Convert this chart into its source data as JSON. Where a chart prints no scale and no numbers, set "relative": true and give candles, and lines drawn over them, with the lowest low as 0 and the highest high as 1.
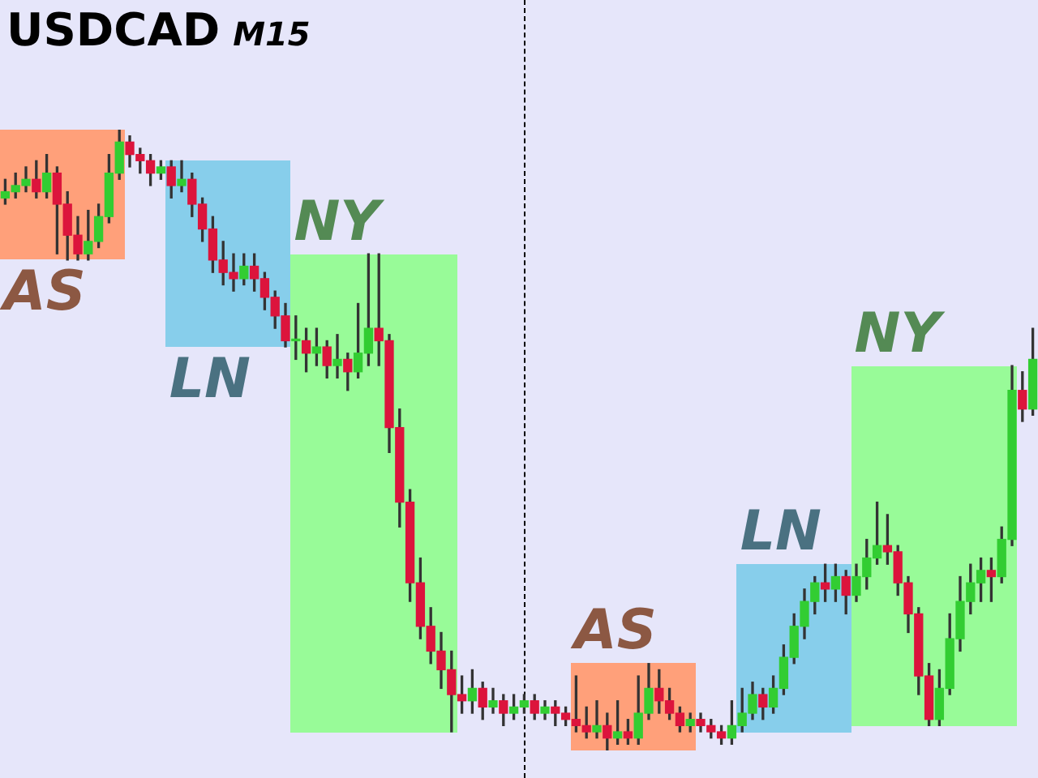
{
  "chart_data": {
    "type": "candlestick",
    "title": "USDCAD",
    "subtitle": "M15",
    "relative": true,
    "categories": [
      null,
      null,
      null,
      null,
      null,
      null,
      null,
      null,
      null,
      null,
      null,
      null,
      null,
      null,
      null,
      null,
      null,
      null,
      null,
      null,
      null,
      null,
      null,
      null,
      null,
      null,
      null,
      null,
      null,
      null,
      null,
      null,
      null,
      null,
      null,
      null,
      null,
      null,
      null,
      null,
      null,
      null,
      null,
      null,
      null,
      null,
      null,
      null,
      null,
      null,
      null,
      null,
      null,
      null,
      null,
      null,
      null,
      null,
      null,
      null,
      null,
      null,
      null,
      null,
      null,
      null,
      null,
      null,
      null,
      null,
      null,
      null,
      null,
      null,
      null,
      null,
      null,
      null,
      null,
      null,
      null,
      null,
      null,
      null,
      null,
      null,
      null,
      null,
      null,
      null,
      null,
      null,
      null,
      null,
      null,
      null,
      null,
      null,
      null,
      null
    ],
    "ohlc": [
      [
        0.89,
        0.92,
        0.88,
        0.9
      ],
      [
        0.9,
        0.93,
        0.89,
        0.91
      ],
      [
        0.91,
        0.94,
        0.9,
        0.92
      ],
      [
        0.92,
        0.95,
        0.89,
        0.9
      ],
      [
        0.9,
        0.96,
        0.89,
        0.93
      ],
      [
        0.93,
        0.94,
        0.8,
        0.88
      ],
      [
        0.88,
        0.9,
        0.79,
        0.83
      ],
      [
        0.83,
        0.86,
        0.79,
        0.8
      ],
      [
        0.8,
        0.87,
        0.79,
        0.82
      ],
      [
        0.82,
        0.88,
        0.81,
        0.86
      ],
      [
        0.86,
        0.96,
        0.85,
        0.93
      ],
      [
        0.93,
        1.0,
        0.92,
        0.98
      ],
      [
        0.98,
        0.99,
        0.94,
        0.96
      ],
      [
        0.96,
        0.97,
        0.93,
        0.95
      ],
      [
        0.95,
        0.96,
        0.91,
        0.93
      ],
      [
        0.93,
        0.95,
        0.92,
        0.94
      ],
      [
        0.94,
        0.95,
        0.89,
        0.91
      ],
      [
        0.91,
        0.95,
        0.9,
        0.92
      ],
      [
        0.92,
        0.93,
        0.86,
        0.88
      ],
      [
        0.88,
        0.89,
        0.82,
        0.84
      ],
      [
        0.84,
        0.86,
        0.77,
        0.79
      ],
      [
        0.79,
        0.82,
        0.75,
        0.77
      ],
      [
        0.77,
        0.8,
        0.74,
        0.76
      ],
      [
        0.76,
        0.8,
        0.75,
        0.78
      ],
      [
        0.78,
        0.8,
        0.74,
        0.76
      ],
      [
        0.76,
        0.77,
        0.71,
        0.73
      ],
      [
        0.73,
        0.74,
        0.68,
        0.7
      ],
      [
        0.7,
        0.72,
        0.65,
        0.66
      ],
      [
        0.66,
        0.7,
        0.63,
        0.66
      ],
      [
        0.66,
        0.68,
        0.61,
        0.64
      ],
      [
        0.64,
        0.68,
        0.62,
        0.65
      ],
      [
        0.65,
        0.66,
        0.6,
        0.62
      ],
      [
        0.62,
        0.67,
        0.6,
        0.63
      ],
      [
        0.63,
        0.64,
        0.58,
        0.61
      ],
      [
        0.61,
        0.72,
        0.6,
        0.64
      ],
      [
        0.64,
        0.8,
        0.62,
        0.68
      ],
      [
        0.68,
        0.8,
        0.62,
        0.66
      ],
      [
        0.66,
        0.67,
        0.48,
        0.52
      ],
      [
        0.52,
        0.55,
        0.36,
        0.4
      ],
      [
        0.4,
        0.42,
        0.24,
        0.27
      ],
      [
        0.27,
        0.31,
        0.18,
        0.2
      ],
      [
        0.2,
        0.23,
        0.14,
        0.16
      ],
      [
        0.16,
        0.19,
        0.1,
        0.13
      ],
      [
        0.13,
        0.16,
        0.03,
        0.09
      ],
      [
        0.09,
        0.12,
        0.06,
        0.08
      ],
      [
        0.08,
        0.13,
        0.06,
        0.1
      ],
      [
        0.1,
        0.11,
        0.05,
        0.07
      ],
      [
        0.07,
        0.1,
        0.06,
        0.08
      ],
      [
        0.08,
        0.09,
        0.04,
        0.06
      ],
      [
        0.06,
        0.09,
        0.05,
        0.07
      ],
      [
        0.07,
        0.09,
        0.06,
        0.08
      ],
      [
        0.08,
        0.09,
        0.05,
        0.06
      ],
      [
        0.06,
        0.08,
        0.05,
        0.07
      ],
      [
        0.07,
        0.08,
        0.04,
        0.06
      ],
      [
        0.06,
        0.07,
        0.04,
        0.05
      ],
      [
        0.05,
        0.12,
        0.03,
        0.04
      ],
      [
        0.04,
        0.07,
        0.02,
        0.03
      ],
      [
        0.03,
        0.08,
        0.02,
        0.04
      ],
      [
        0.04,
        0.06,
        0.0,
        0.02
      ],
      [
        0.02,
        0.08,
        0.01,
        0.03
      ],
      [
        0.03,
        0.05,
        0.01,
        0.02
      ],
      [
        0.02,
        0.12,
        0.01,
        0.06
      ],
      [
        0.06,
        0.14,
        0.05,
        0.1
      ],
      [
        0.1,
        0.13,
        0.06,
        0.08
      ],
      [
        0.08,
        0.1,
        0.05,
        0.06
      ],
      [
        0.06,
        0.07,
        0.03,
        0.04
      ],
      [
        0.04,
        0.06,
        0.03,
        0.05
      ],
      [
        0.05,
        0.06,
        0.03,
        0.04
      ],
      [
        0.04,
        0.05,
        0.02,
        0.03
      ],
      [
        0.03,
        0.04,
        0.01,
        0.02
      ],
      [
        0.02,
        0.08,
        0.01,
        0.04
      ],
      [
        0.04,
        0.1,
        0.03,
        0.06
      ],
      [
        0.06,
        0.11,
        0.05,
        0.09
      ],
      [
        0.09,
        0.1,
        0.05,
        0.07
      ],
      [
        0.07,
        0.12,
        0.06,
        0.1
      ],
      [
        0.1,
        0.17,
        0.09,
        0.15
      ],
      [
        0.15,
        0.22,
        0.14,
        0.2
      ],
      [
        0.2,
        0.26,
        0.18,
        0.24
      ],
      [
        0.24,
        0.28,
        0.22,
        0.27
      ],
      [
        0.27,
        0.3,
        0.24,
        0.26
      ],
      [
        0.26,
        0.3,
        0.24,
        0.28
      ],
      [
        0.28,
        0.29,
        0.22,
        0.25
      ],
      [
        0.25,
        0.3,
        0.24,
        0.28
      ],
      [
        0.28,
        0.34,
        0.26,
        0.31
      ],
      [
        0.31,
        0.4,
        0.3,
        0.33
      ],
      [
        0.33,
        0.38,
        0.3,
        0.32
      ],
      [
        0.32,
        0.33,
        0.25,
        0.27
      ],
      [
        0.27,
        0.28,
        0.19,
        0.22
      ],
      [
        0.22,
        0.23,
        0.09,
        0.12
      ],
      [
        0.12,
        0.14,
        0.04,
        0.05
      ],
      [
        0.05,
        0.13,
        0.04,
        0.1
      ],
      [
        0.1,
        0.22,
        0.09,
        0.18
      ],
      [
        0.18,
        0.28,
        0.16,
        0.24
      ],
      [
        0.24,
        0.3,
        0.22,
        0.27
      ],
      [
        0.27,
        0.31,
        0.24,
        0.29
      ],
      [
        0.29,
        0.31,
        0.24,
        0.28
      ],
      [
        0.28,
        0.36,
        0.27,
        0.34
      ],
      [
        0.34,
        0.62,
        0.33,
        0.58
      ],
      [
        0.58,
        0.61,
        0.53,
        0.55
      ],
      [
        0.55,
        0.68,
        0.54,
        0.63
      ]
    ],
    "annotations": [
      "AS",
      "LN",
      "NY",
      "AS",
      "LN",
      "NY"
    ]
  }
}
